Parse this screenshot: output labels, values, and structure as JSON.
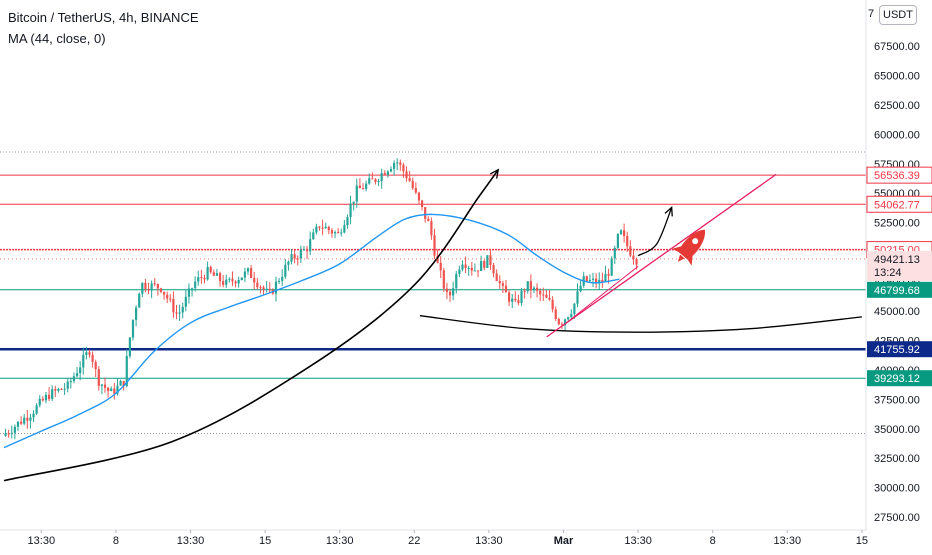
{
  "header": {
    "title": "Bitcoin / TetherUS, 4h, BINANCE",
    "indicator": "MA (44, close, 0)",
    "currency": "USDT",
    "currency_edge": "7"
  },
  "colors": {
    "candle_up": "#26a69a",
    "candle_down": "#ef5350",
    "ma_line": "#2196f3",
    "resistance_line": "#f23645",
    "support_line": "#089981",
    "key_level": "#0d2a8a",
    "trend_channel": "#e91e63",
    "drawing": "#000000"
  },
  "chart_data": {
    "type": "candlestick",
    "symbol": "BTCUSDT",
    "exchange": "BINANCE",
    "interval": "4h",
    "ylim": [
      27500,
      70000
    ],
    "yticks": [
      27500,
      30000,
      32500,
      35000,
      37500,
      40000,
      42500,
      45000,
      47500,
      50000,
      52500,
      55000,
      57500,
      60000,
      62500,
      65000,
      67500
    ],
    "ytick_labels": [
      "27500.00",
      "30000.00",
      "32500.00",
      "35000.00",
      "37500.00",
      "40000.00",
      "42500.00",
      "45000.00",
      "47500.00",
      "50000.00",
      "52500.00",
      "55000.00",
      "57500.00",
      "60000.00",
      "62500.00",
      "65000.00",
      "67500.00"
    ],
    "xticks": [
      {
        "label": "13:30",
        "t": 2.0
      },
      {
        "label": "8",
        "t": 6.0
      },
      {
        "label": "13:30",
        "t": 10.0
      },
      {
        "label": "15",
        "t": 14.0
      },
      {
        "label": "13:30",
        "t": 18.0
      },
      {
        "label": "22",
        "t": 22.0
      },
      {
        "label": "13:30",
        "t": 26.0
      },
      {
        "label": "Mar",
        "t": 30.0,
        "bold": true
      },
      {
        "label": "13:30",
        "t": 34.0
      },
      {
        "label": "8",
        "t": 38.0
      },
      {
        "label": "13:30",
        "t": 42.0
      },
      {
        "label": "15",
        "t": 46.0
      }
    ],
    "price_path": [
      {
        "t": 0.0,
        "p": 34400
      },
      {
        "t": 1.5,
        "p": 36300
      },
      {
        "t": 2.5,
        "p": 37900
      },
      {
        "t": 3.5,
        "p": 38600
      },
      {
        "t": 4.2,
        "p": 40500
      },
      {
        "t": 4.7,
        "p": 41800
      },
      {
        "t": 5.1,
        "p": 39200
      },
      {
        "t": 5.8,
        "p": 38000
      },
      {
        "t": 6.5,
        "p": 39000
      },
      {
        "t": 6.9,
        "p": 43500
      },
      {
        "t": 7.4,
        "p": 47300
      },
      {
        "t": 8.5,
        "p": 47000
      },
      {
        "t": 9.4,
        "p": 44600
      },
      {
        "t": 10.3,
        "p": 47400
      },
      {
        "t": 11.0,
        "p": 48300
      },
      {
        "t": 12.0,
        "p": 47300
      },
      {
        "t": 13.2,
        "p": 48300
      },
      {
        "t": 14.3,
        "p": 46300
      },
      {
        "t": 15.4,
        "p": 49300
      },
      {
        "t": 16.3,
        "p": 50300
      },
      {
        "t": 17.0,
        "p": 52300
      },
      {
        "t": 18.0,
        "p": 51500
      },
      {
        "t": 19.0,
        "p": 55200
      },
      {
        "t": 20.0,
        "p": 56200
      },
      {
        "t": 21.1,
        "p": 57800
      },
      {
        "t": 21.8,
        "p": 56200
      },
      {
        "t": 22.3,
        "p": 54300
      },
      {
        "t": 22.9,
        "p": 52200
      },
      {
        "t": 23.3,
        "p": 49100
      },
      {
        "t": 23.9,
        "p": 45900
      },
      {
        "t": 24.6,
        "p": 49400
      },
      {
        "t": 25.3,
        "p": 48500
      },
      {
        "t": 26.1,
        "p": 49400
      },
      {
        "t": 26.8,
        "p": 46800
      },
      {
        "t": 27.5,
        "p": 45500
      },
      {
        "t": 28.1,
        "p": 47200
      },
      {
        "t": 29.3,
        "p": 45800
      },
      {
        "t": 29.9,
        "p": 43900
      },
      {
        "t": 30.6,
        "p": 45300
      },
      {
        "t": 31.1,
        "p": 47600
      },
      {
        "t": 32.1,
        "p": 47400
      },
      {
        "t": 32.6,
        "p": 48600
      },
      {
        "t": 33.1,
        "p": 51800
      },
      {
        "t": 33.6,
        "p": 50200
      },
      {
        "t": 34.0,
        "p": 49400
      }
    ],
    "ma": {
      "name": "MA (44, close, 0)",
      "points": [
        {
          "t": 0.0,
          "p": 33400
        },
        {
          "t": 2.0,
          "p": 34800
        },
        {
          "t": 4.0,
          "p": 36200
        },
        {
          "t": 6.0,
          "p": 38000
        },
        {
          "t": 8.0,
          "p": 41500
        },
        {
          "t": 10.0,
          "p": 44000
        },
        {
          "t": 12.0,
          "p": 45300
        },
        {
          "t": 14.0,
          "p": 46400
        },
        {
          "t": 16.0,
          "p": 47600
        },
        {
          "t": 18.0,
          "p": 49000
        },
        {
          "t": 20.0,
          "p": 51300
        },
        {
          "t": 21.5,
          "p": 52800
        },
        {
          "t": 23.0,
          "p": 53200
        },
        {
          "t": 25.0,
          "p": 52700
        },
        {
          "t": 27.0,
          "p": 51500
        },
        {
          "t": 28.5,
          "p": 49800
        },
        {
          "t": 30.0,
          "p": 48300
        },
        {
          "t": 31.5,
          "p": 47400
        },
        {
          "t": 33.0,
          "p": 47700
        }
      ]
    },
    "horizontal_levels": [
      {
        "value": 56536.39,
        "label": "56536.39",
        "role": "resistance"
      },
      {
        "value": 54062.77,
        "label": "54062.77",
        "role": "resistance"
      },
      {
        "value": 50215.0,
        "label": "50215.00",
        "role": "resistance_dotted"
      },
      {
        "value": 46799.68,
        "label": "46799.68",
        "role": "support"
      },
      {
        "value": 41755.92,
        "label": "41755.92",
        "role": "key"
      },
      {
        "value": 39293.12,
        "label": "39293.12",
        "role": "support"
      }
    ],
    "dotted_levels": [
      58500,
      34600
    ],
    "last_price": {
      "value": 49421.13,
      "label": "49421.13",
      "countdown": "13:24"
    },
    "drawings": {
      "big_arc": [
        {
          "t": 0.0,
          "p": 30600
        },
        {
          "t": 9.0,
          "p": 33900
        },
        {
          "t": 16.5,
          "p": 40400
        },
        {
          "t": 22.0,
          "p": 47200
        },
        {
          "t": 25.5,
          "p": 54800
        },
        {
          "t": 26.5,
          "p": 57000
        }
      ],
      "rounded_bottom": [
        {
          "t": 22.3,
          "p": 44600
        },
        {
          "t": 28.0,
          "p": 43500
        },
        {
          "t": 34.0,
          "p": 43200
        },
        {
          "t": 40.0,
          "p": 43500
        },
        {
          "t": 46.0,
          "p": 44500
        }
      ],
      "small_arrow": [
        {
          "t": 34.0,
          "p": 49700
        },
        {
          "t": 35.0,
          "p": 50700
        },
        {
          "t": 35.8,
          "p": 53800
        }
      ],
      "channel_line": [
        {
          "t": 29.1,
          "p": 42800
        },
        {
          "t": 41.4,
          "p": 56600
        }
      ],
      "channel_lower": [
        {
          "t": 30.0,
          "p": 43800
        },
        {
          "t": 34.0,
          "p": 48800
        }
      ]
    }
  }
}
